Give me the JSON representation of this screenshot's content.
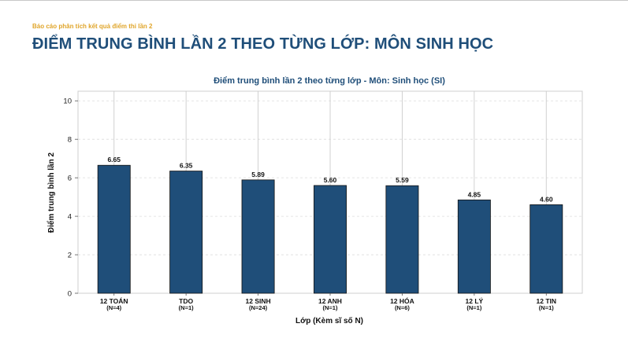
{
  "report": {
    "kicker": "Báo cáo phân tích kết quả điểm thi lần 2",
    "title": "ĐIỂM TRUNG BÌNH LẦN 2 THEO TỪNG LỚP: MÔN SINH HỌC"
  },
  "colors": {
    "bar": "#1f4e79",
    "kicker": "#e0a52a",
    "title": "#1f4e79",
    "grid": "#dcdcdc"
  },
  "chart_data": {
    "type": "bar",
    "title": "Điểm trung bình lần 2 theo từng lớp - Môn: Sinh học (SI)",
    "xlabel": "Lớp (Kèm sĩ số N)",
    "ylabel": "Điểm trung bình lần 2",
    "ylim": [
      0,
      10.5
    ],
    "yticks": [
      0,
      2,
      4,
      6,
      8,
      10
    ],
    "grid": true,
    "categories": [
      "12 TOÁN",
      "TDO",
      "12 SINH",
      "12 ANH",
      "12 HÓA",
      "12 LÝ",
      "12 TIN"
    ],
    "category_sub": [
      "(N=4)",
      "(N=1)",
      "(N=24)",
      "(N=1)",
      "(N=6)",
      "(N=1)",
      "(N=1)"
    ],
    "values": [
      6.65,
      6.35,
      5.89,
      5.6,
      5.59,
      4.85,
      4.6
    ],
    "value_labels": [
      "6.65",
      "6.35",
      "5.89",
      "5.60",
      "5.59",
      "4.85",
      "4.60"
    ]
  }
}
